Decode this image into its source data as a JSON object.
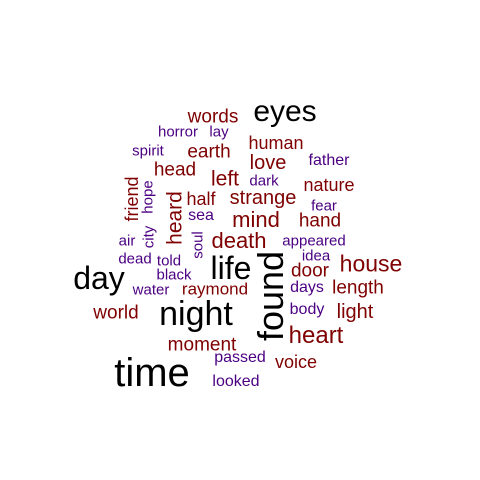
{
  "cloud": {
    "colors": {
      "large": "#000000",
      "medium": "#7f0000",
      "small": "#4b0082"
    },
    "words": [
      {
        "text": "eyes",
        "color": "large"
      },
      {
        "text": "words",
        "color": "medium"
      },
      {
        "text": "horror",
        "color": "small"
      },
      {
        "text": "lay",
        "color": "small"
      },
      {
        "text": "human",
        "color": "medium"
      },
      {
        "text": "spirit",
        "color": "small"
      },
      {
        "text": "earth",
        "color": "medium"
      },
      {
        "text": "love",
        "color": "medium"
      },
      {
        "text": "father",
        "color": "small"
      },
      {
        "text": "head",
        "color": "medium"
      },
      {
        "text": "left",
        "color": "medium"
      },
      {
        "text": "dark",
        "color": "small"
      },
      {
        "text": "nature",
        "color": "medium"
      },
      {
        "text": "friend",
        "color": "medium"
      },
      {
        "text": "hope",
        "color": "small"
      },
      {
        "text": "half",
        "color": "medium"
      },
      {
        "text": "strange",
        "color": "medium"
      },
      {
        "text": "fear",
        "color": "small"
      },
      {
        "text": "heard",
        "color": "medium"
      },
      {
        "text": "sea",
        "color": "small"
      },
      {
        "text": "mind",
        "color": "medium"
      },
      {
        "text": "hand",
        "color": "medium"
      },
      {
        "text": "air",
        "color": "small"
      },
      {
        "text": "city",
        "color": "small"
      },
      {
        "text": "soul",
        "color": "small"
      },
      {
        "text": "death",
        "color": "medium"
      },
      {
        "text": "appeared",
        "color": "small"
      },
      {
        "text": "dead",
        "color": "small"
      },
      {
        "text": "told",
        "color": "small"
      },
      {
        "text": "idea",
        "color": "small"
      },
      {
        "text": "house",
        "color": "medium"
      },
      {
        "text": "day",
        "color": "large"
      },
      {
        "text": "life",
        "color": "large"
      },
      {
        "text": "black",
        "color": "small"
      },
      {
        "text": "door",
        "color": "medium"
      },
      {
        "text": "water",
        "color": "small"
      },
      {
        "text": "raymond",
        "color": "medium"
      },
      {
        "text": "days",
        "color": "small"
      },
      {
        "text": "length",
        "color": "medium"
      },
      {
        "text": "found",
        "color": "large"
      },
      {
        "text": "world",
        "color": "medium"
      },
      {
        "text": "night",
        "color": "large"
      },
      {
        "text": "body",
        "color": "small"
      },
      {
        "text": "light",
        "color": "medium"
      },
      {
        "text": "heart",
        "color": "medium"
      },
      {
        "text": "moment",
        "color": "medium"
      },
      {
        "text": "passed",
        "color": "small"
      },
      {
        "text": "voice",
        "color": "medium"
      },
      {
        "text": "time",
        "color": "large"
      },
      {
        "text": "looked",
        "color": "small"
      }
    ]
  }
}
